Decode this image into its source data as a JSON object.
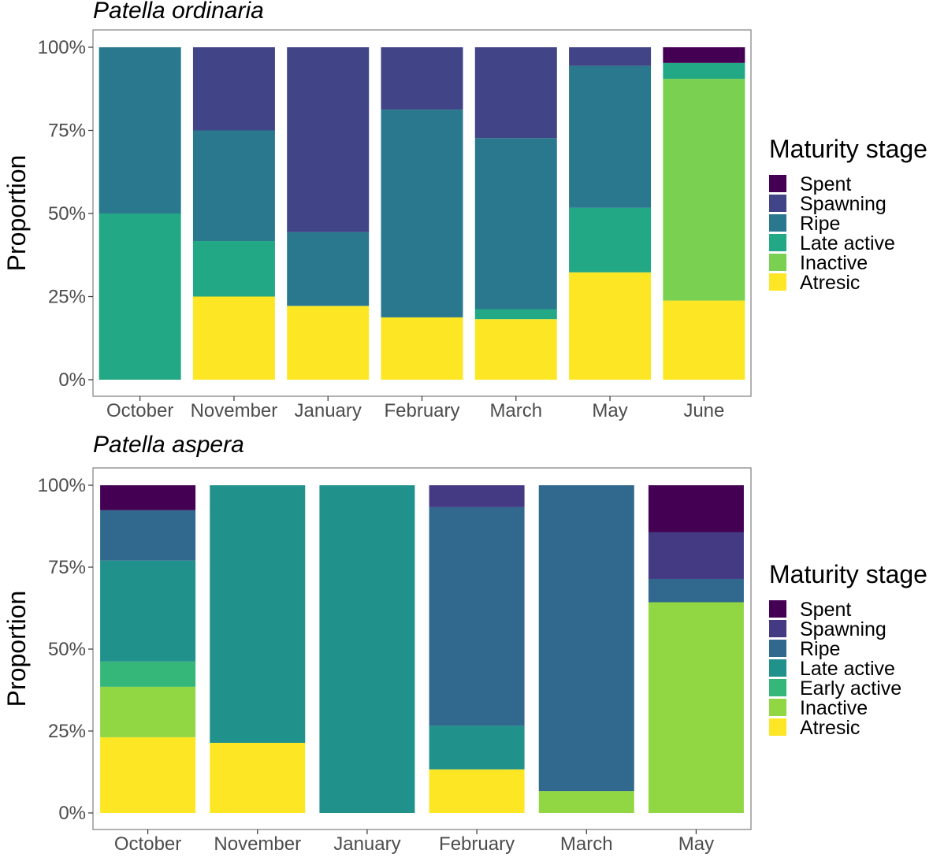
{
  "chart_data": [
    {
      "type": "bar",
      "stacked": true,
      "title": "Patella ordinaria",
      "xlabel": "",
      "ylabel": "Proportion",
      "ylim": [
        0,
        100
      ],
      "yticks": [
        "0%",
        "25%",
        "50%",
        "75%",
        "100%"
      ],
      "categories": [
        "October",
        "November",
        "January",
        "February",
        "March",
        "May",
        "June"
      ],
      "legend_title": "Maturity stage",
      "legend_position": "right",
      "series": [
        {
          "name": "Atresic",
          "color": "#fde725",
          "values": [
            0,
            25,
            22.2,
            18.75,
            18.2,
            32.3,
            23.8
          ]
        },
        {
          "name": "Inactive",
          "color": "#7ad151",
          "values": [
            0,
            0,
            0,
            0,
            0,
            0,
            66.7
          ]
        },
        {
          "name": "Late active",
          "color": "#22a884",
          "values": [
            50,
            16.7,
            0,
            0,
            3,
            19.4,
            4.8
          ]
        },
        {
          "name": "Ripe",
          "color": "#2a788e",
          "values": [
            50,
            33.3,
            22.2,
            62.5,
            51.5,
            42.7,
            0
          ]
        },
        {
          "name": "Spawning",
          "color": "#414487",
          "values": [
            0,
            25,
            55.6,
            18.75,
            27.3,
            5.6,
            0
          ]
        },
        {
          "name": "Spent",
          "color": "#440154",
          "values": [
            0,
            0,
            0,
            0,
            0,
            0,
            4.7
          ]
        }
      ],
      "legend_order": [
        "Spent",
        "Spawning",
        "Ripe",
        "Late active",
        "Inactive",
        "Atresic"
      ]
    },
    {
      "type": "bar",
      "stacked": true,
      "title": "Patella aspera",
      "xlabel": "",
      "ylabel": "Proportion",
      "ylim": [
        0,
        100
      ],
      "yticks": [
        "0%",
        "25%",
        "50%",
        "75%",
        "100%"
      ],
      "categories": [
        "October",
        "November",
        "January",
        "February",
        "March",
        "May"
      ],
      "legend_title": "Maturity stage",
      "legend_position": "right",
      "series": [
        {
          "name": "Atresic",
          "color": "#fde725",
          "values": [
            23.1,
            21.4,
            0,
            13.3,
            0,
            0
          ]
        },
        {
          "name": "Inactive",
          "color": "#90d743",
          "values": [
            15.4,
            0,
            0,
            0,
            6.7,
            64.3
          ]
        },
        {
          "name": "Early active",
          "color": "#35b779",
          "values": [
            7.7,
            0,
            0,
            0,
            0,
            0
          ]
        },
        {
          "name": "Late active",
          "color": "#21918c",
          "values": [
            30.8,
            78.6,
            100,
            13.3,
            0,
            0
          ]
        },
        {
          "name": "Ripe",
          "color": "#31688e",
          "values": [
            15.4,
            0,
            0,
            66.7,
            93.3,
            7.1
          ]
        },
        {
          "name": "Spawning",
          "color": "#443983",
          "values": [
            0,
            0,
            0,
            6.7,
            0,
            14.3
          ]
        },
        {
          "name": "Spent",
          "color": "#440154",
          "values": [
            7.6,
            0,
            0,
            0,
            0,
            14.3
          ]
        }
      ],
      "legend_order": [
        "Spent",
        "Spawning",
        "Ripe",
        "Late active",
        "Early active",
        "Inactive",
        "Atresic"
      ]
    }
  ]
}
